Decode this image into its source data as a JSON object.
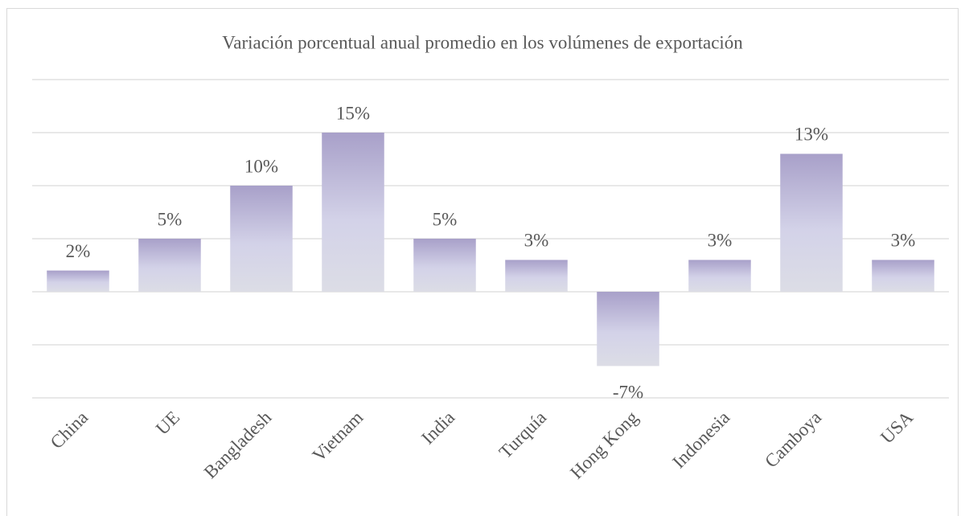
{
  "chart_data": {
    "type": "bar",
    "title": "Variación porcentual anual promedio en los volúmenes de exportación",
    "categories": [
      "China",
      "UE",
      "Bangladesh",
      "Vietnam",
      "India",
      "Turquía",
      "Hong Kong",
      "Indonesia",
      "Camboya",
      "USA"
    ],
    "values": [
      2,
      5,
      10,
      15,
      5,
      3,
      -7,
      3,
      13,
      3
    ],
    "value_labels": [
      "2%",
      "5%",
      "10%",
      "15%",
      "5%",
      "3%",
      "-7%",
      "3%",
      "13%",
      "3%"
    ],
    "color": "#a8a0c9",
    "ylim": [
      -10,
      20
    ],
    "yticks": [
      -10,
      -5,
      0,
      5,
      10,
      15,
      20
    ],
    "grid": true
  }
}
